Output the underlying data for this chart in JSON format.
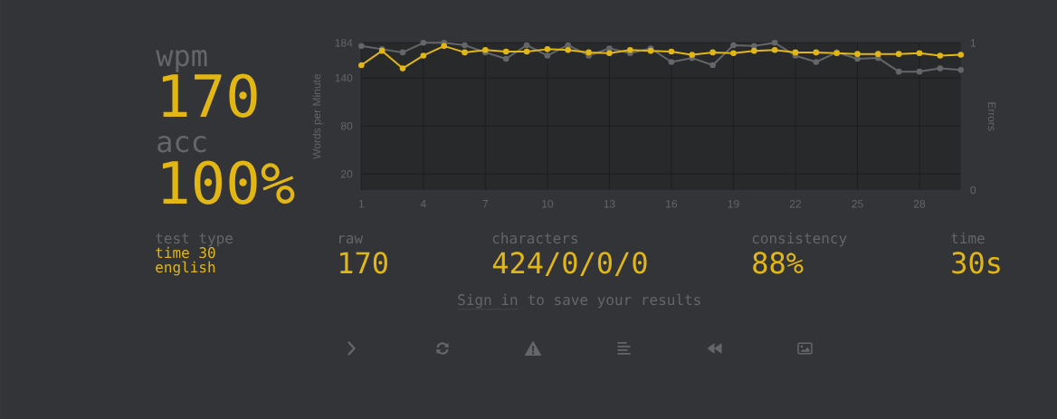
{
  "chart_data": [
    {
      "type": "other",
      "annotations": [
        "wpm",
        "170",
        "acc",
        "100%"
      ]
    },
    {
      "type": "line",
      "ylabel": "Words per Minute",
      "y2label": "Errors",
      "x": [
        1,
        2,
        3,
        4,
        5,
        6,
        7,
        8,
        9,
        10,
        11,
        12,
        13,
        14,
        15,
        16,
        17,
        18,
        19,
        20,
        21,
        22,
        23,
        24,
        25,
        26,
        27,
        28,
        29,
        30
      ],
      "series": [
        {
          "color": "#646669",
          "values": [
            180,
            176,
            172,
            184,
            184,
            181,
            172,
            164,
            181,
            168,
            181,
            168,
            177,
            171,
            177,
            160,
            165,
            156,
            181,
            180,
            184,
            168,
            160,
            172,
            164,
            165,
            148,
            148,
            152,
            150
          ]
        },
        {
          "color": "#e2b714",
          "values": [
            156,
            174,
            152,
            168,
            180,
            172,
            175,
            173,
            173,
            176,
            175,
            172,
            171,
            175,
            174,
            173,
            169,
            172,
            171,
            174,
            175,
            172,
            172,
            171,
            170,
            170,
            170,
            171,
            168,
            169
          ]
        }
      ],
      "xlim": [
        1,
        30
      ],
      "xticks": [
        1,
        4,
        7,
        10,
        13,
        16,
        19,
        22,
        25,
        28
      ],
      "ylim": [
        0,
        184
      ],
      "yticks": [
        20,
        80,
        140,
        184
      ],
      "y2lim": [
        0,
        1
      ],
      "y2ticks": [
        0,
        1
      ],
      "grid": true,
      "marker": "circle"
    },
    {
      "type": "other",
      "annotations": [
        "test type",
        "time 30",
        "english",
        "raw",
        "170",
        "characters",
        "424/0/0/0",
        "consistency",
        "88%",
        "time",
        "30s",
        "Sign in",
        "to save your results"
      ]
    }
  ]
}
